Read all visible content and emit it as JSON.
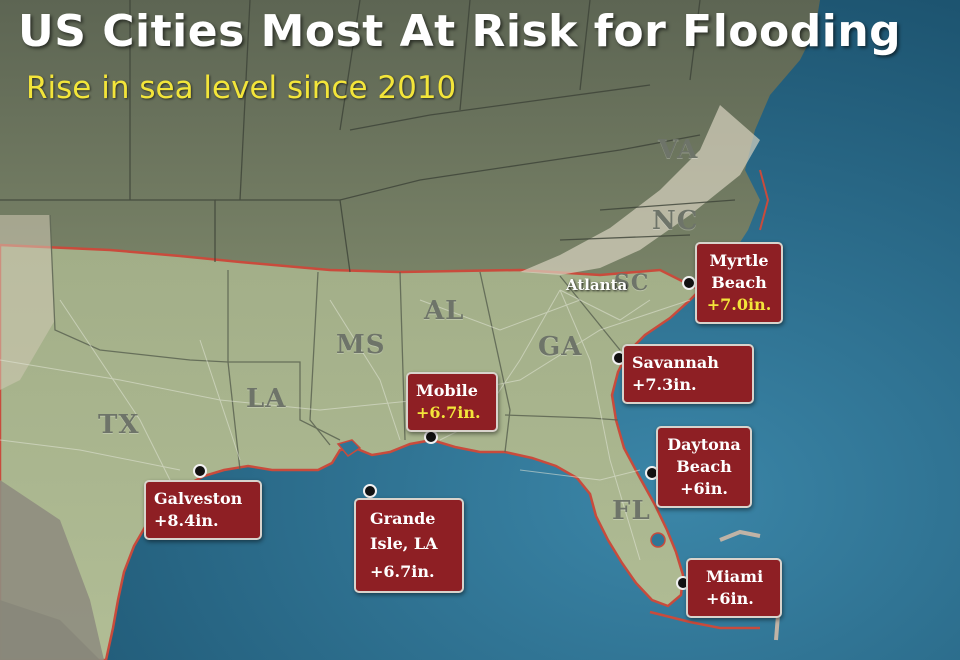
{
  "title": "US Cities Most At Risk for Flooding",
  "subtitle": "Rise in sea level since 2010",
  "states": [
    "VA",
    "NC",
    "SC",
    "AL",
    "MS",
    "GA",
    "LA",
    "TX",
    "FL"
  ],
  "city_label": "Atlanta",
  "cities": [
    {
      "name": "Myrtle Beach",
      "lines": [
        "Myrtle",
        "Beach"
      ],
      "rise": "+7.0in."
    },
    {
      "name": "Savannah",
      "lines": [
        "Savannah"
      ],
      "rise": "+7.3in."
    },
    {
      "name": "Mobile",
      "lines": [
        "Mobile"
      ],
      "rise": "+6.7in."
    },
    {
      "name": "Daytona Beach",
      "lines": [
        "Daytona",
        "Beach"
      ],
      "rise": "+6in."
    },
    {
      "name": "Galveston",
      "lines": [
        "Galveston"
      ],
      "rise": "+8.4in."
    },
    {
      "name": "Grande Isle, LA",
      "lines": [
        "Grande",
        "Isle, LA"
      ],
      "rise": "+6.7in."
    },
    {
      "name": "Miami",
      "lines": [
        "Miami"
      ],
      "rise": "+6in."
    }
  ],
  "colors": {
    "ocean": "#2a6d8e",
    "land_south": "#a9b58e",
    "land_north": "#6f7861",
    "label_box": "#8e1f24",
    "highlight_text": "#f3e53a"
  }
}
